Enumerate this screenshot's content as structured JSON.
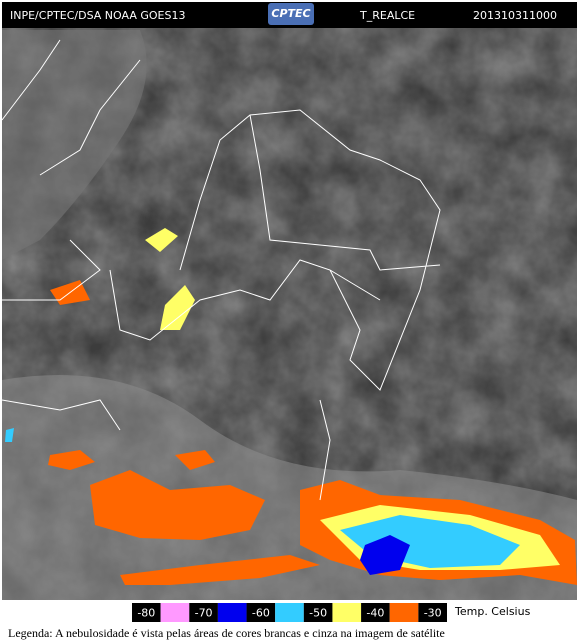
{
  "header": {
    "left": "INPE/CPTEC/DSA NOAA GOES13",
    "logo": "CPTEC",
    "product": "T_REALCE",
    "timestamp": "201310311000"
  },
  "legend": {
    "scale": [
      -80,
      -70,
      -60,
      -50,
      -40,
      -30
    ],
    "colors": [
      "#ff99ff",
      "#0000ee",
      "#33ccff",
      "#ffff66",
      "#ff6600"
    ],
    "unit": "Temp. Celsius"
  },
  "caption": "Legenda: A nebulosidade é vista pelas áreas de cores brancas e cinza na imagem de satélite"
}
